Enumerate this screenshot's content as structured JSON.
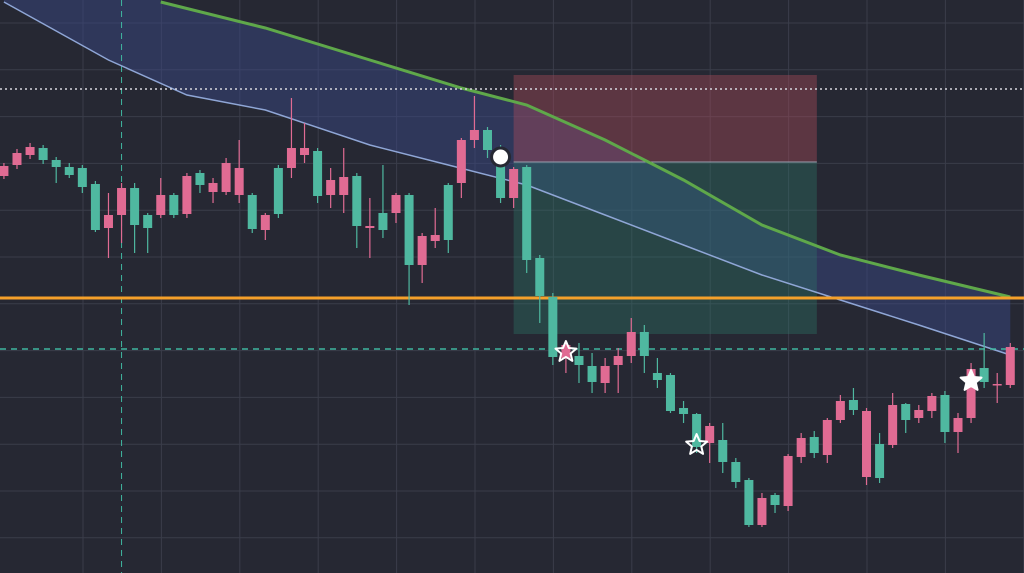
{
  "chart_data": {
    "type": "candlestick",
    "ylim": [
      0,
      573
    ],
    "xlim": [
      -0.3,
      78.05
    ],
    "up_color": "#4fb8a0",
    "down_color": "#e06b93",
    "ohlc": [
      [
        407,
        397,
        410,
        394
      ],
      [
        420,
        408,
        424,
        404
      ],
      [
        426,
        418,
        430,
        414
      ],
      [
        413,
        425,
        428,
        409
      ],
      [
        406,
        413,
        416,
        390
      ],
      [
        398,
        406,
        410,
        395
      ],
      [
        386,
        405,
        408,
        380
      ],
      [
        343,
        389,
        392,
        341
      ],
      [
        358,
        345,
        380,
        315
      ],
      [
        385,
        358,
        390,
        330
      ],
      [
        348,
        385,
        390,
        320
      ],
      [
        345,
        358,
        360,
        320
      ],
      [
        378,
        358,
        395,
        355
      ],
      [
        358,
        378,
        380,
        355
      ],
      [
        397,
        359,
        400,
        355
      ],
      [
        388,
        400,
        403,
        380
      ],
      [
        390,
        381,
        395,
        370
      ],
      [
        410,
        381,
        415,
        378
      ],
      [
        405,
        378,
        433,
        370
      ],
      [
        344,
        378,
        380,
        340
      ],
      [
        358,
        343,
        360,
        333
      ],
      [
        359,
        405,
        408,
        355
      ],
      [
        425,
        405,
        475,
        395
      ],
      [
        425,
        418,
        450,
        410
      ],
      [
        377,
        422,
        425,
        370
      ],
      [
        393,
        378,
        405,
        365
      ],
      [
        396,
        378,
        425,
        360
      ],
      [
        347,
        397,
        400,
        325
      ],
      [
        347,
        345,
        375,
        315
      ],
      [
        343,
        360,
        408,
        335
      ],
      [
        378,
        360,
        380,
        350
      ],
      [
        308,
        378,
        380,
        268
      ],
      [
        337,
        308,
        340,
        290
      ],
      [
        338,
        332,
        365,
        325
      ],
      [
        333,
        388,
        390,
        320
      ],
      [
        433,
        390,
        435,
        375
      ],
      [
        443,
        433,
        477,
        425
      ],
      [
        423,
        443,
        446,
        415
      ],
      [
        375,
        423,
        428,
        370
      ],
      [
        404,
        375,
        406,
        365
      ],
      [
        313,
        406,
        408,
        300
      ],
      [
        277,
        315,
        318,
        250
      ],
      [
        216,
        276,
        280,
        208
      ],
      [
        228,
        215,
        230,
        200
      ],
      [
        208,
        217,
        230,
        190
      ],
      [
        191,
        207,
        220,
        180
      ],
      [
        207,
        190,
        215,
        180
      ],
      [
        217,
        208,
        225,
        180
      ],
      [
        241,
        217,
        255,
        210
      ],
      [
        217,
        241,
        248,
        200
      ],
      [
        193,
        200,
        215,
        185
      ],
      [
        162,
        198,
        200,
        160
      ],
      [
        159,
        165,
        172,
        150
      ],
      [
        126,
        159,
        160,
        120
      ],
      [
        147,
        130,
        150,
        110
      ],
      [
        111,
        133,
        150,
        100
      ],
      [
        91,
        111,
        115,
        85
      ],
      [
        48,
        93,
        95,
        46
      ],
      [
        75,
        48,
        80,
        46
      ],
      [
        68,
        78,
        80,
        60
      ],
      [
        117,
        67,
        119,
        62
      ],
      [
        135,
        116,
        140,
        110
      ],
      [
        120,
        136,
        142,
        115
      ],
      [
        153,
        118,
        155,
        110
      ],
      [
        172,
        153,
        178,
        150
      ],
      [
        163,
        173,
        185,
        158
      ],
      [
        162,
        96,
        165,
        88
      ],
      [
        95,
        129,
        140,
        90
      ],
      [
        168,
        128,
        180,
        125
      ],
      [
        153,
        169,
        170,
        140
      ],
      [
        163,
        155,
        168,
        150
      ],
      [
        177,
        162,
        180,
        155
      ],
      [
        141,
        178,
        182,
        130
      ],
      [
        155,
        141,
        160,
        120
      ],
      [
        204,
        155,
        210,
        150
      ],
      [
        191,
        205,
        240,
        185
      ],
      [
        189,
        188,
        200,
        170
      ],
      [
        226,
        188,
        230,
        185
      ]
    ],
    "series": [
      {
        "color": "#5fa84a",
        "x": [
          12,
          20,
          28,
          35,
          40,
          46,
          52,
          58,
          64,
          70,
          77
        ],
        "values": [
          571,
          545,
          513,
          485,
          468,
          433,
          393,
          348,
          318,
          298,
          276
        ]
      },
      {
        "color": "#8fa6d6",
        "x": [
          0,
          8,
          14,
          20,
          28,
          34,
          40,
          46,
          52,
          58,
          64,
          70,
          77
        ],
        "values": [
          571,
          513,
          478,
          463,
          428,
          408,
          388,
          358,
          328,
          298,
          273,
          248,
          218
        ]
      }
    ],
    "levels": [
      {
        "value": 275,
        "color": "#f5a02a",
        "style": "solid"
      },
      {
        "value": 484,
        "color": "#d8d8e0",
        "style": "dotted"
      },
      {
        "value": 224,
        "color": "#3fb6a0",
        "style": "dashed"
      }
    ],
    "vline": {
      "x": 9,
      "color": "#3fb6a0"
    },
    "position": {
      "x_start": 39,
      "x_end": 62.2,
      "stop": 498,
      "entry": 411,
      "target": 239
    },
    "markers": [
      {
        "shape": "circle",
        "x": 38,
        "value": 416
      },
      {
        "shape": "star-outline",
        "x": 43,
        "value": 221
      },
      {
        "shape": "star-outline",
        "x": 53,
        "value": 128
      },
      {
        "shape": "star",
        "x": 74,
        "value": 192
      }
    ]
  }
}
